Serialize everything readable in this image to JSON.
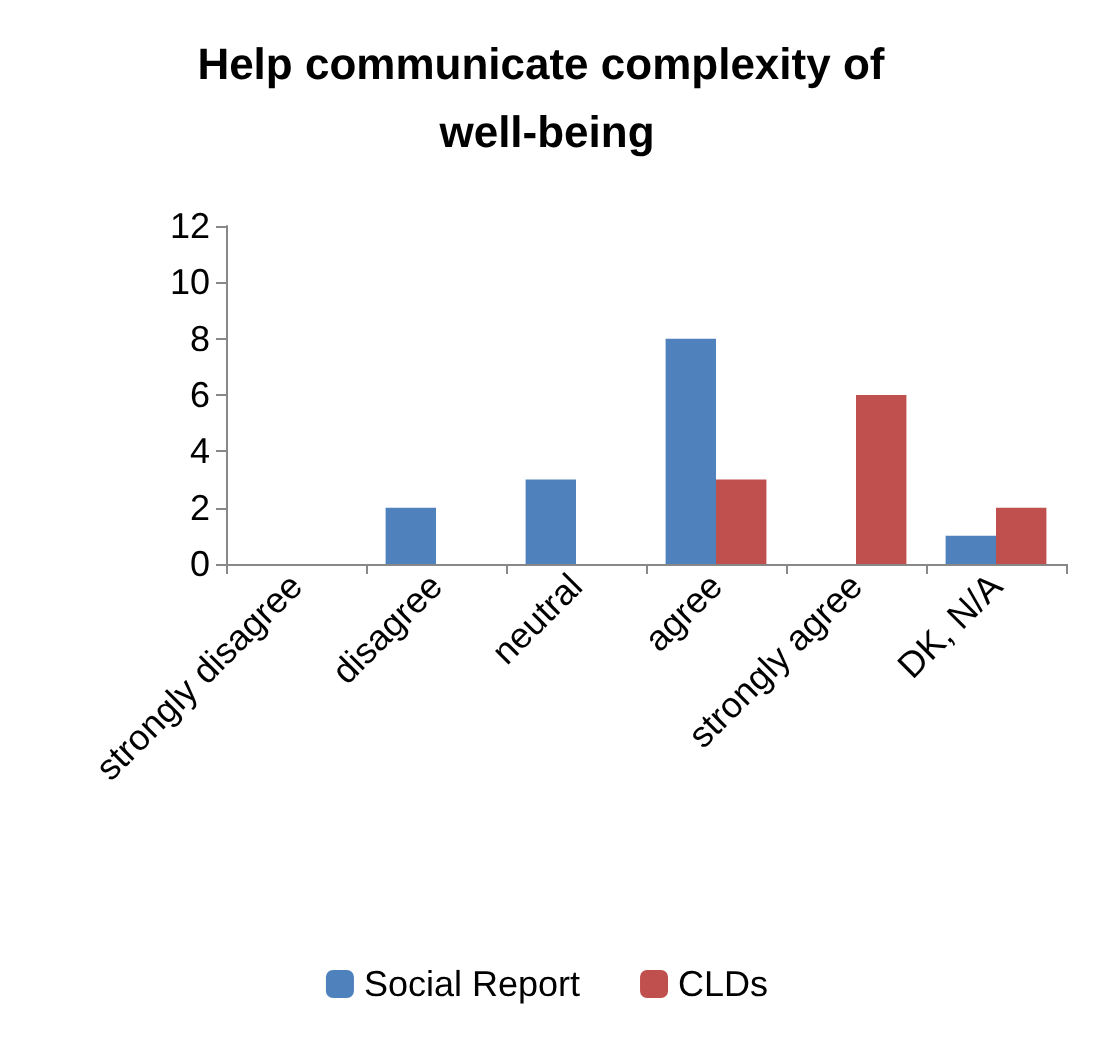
{
  "chart_data": {
    "type": "bar",
    "title": "Help communicate complexity of well-being",
    "categories": [
      "strongly disagree",
      "disagree",
      "neutral",
      "agree",
      "strongly agree",
      "DK, N/A"
    ],
    "series": [
      {
        "name": "Social Report",
        "color": "#4f81bd",
        "values": [
          0,
          2,
          3,
          8,
          0,
          1
        ]
      },
      {
        "name": "CLDs",
        "color": "#c0504d",
        "values": [
          0,
          0,
          0,
          3,
          6,
          2
        ]
      }
    ],
    "ylim": [
      0,
      12
    ],
    "yticks": [
      0,
      2,
      4,
      6,
      8,
      10,
      12
    ],
    "grid": false,
    "legend": "bottom"
  }
}
